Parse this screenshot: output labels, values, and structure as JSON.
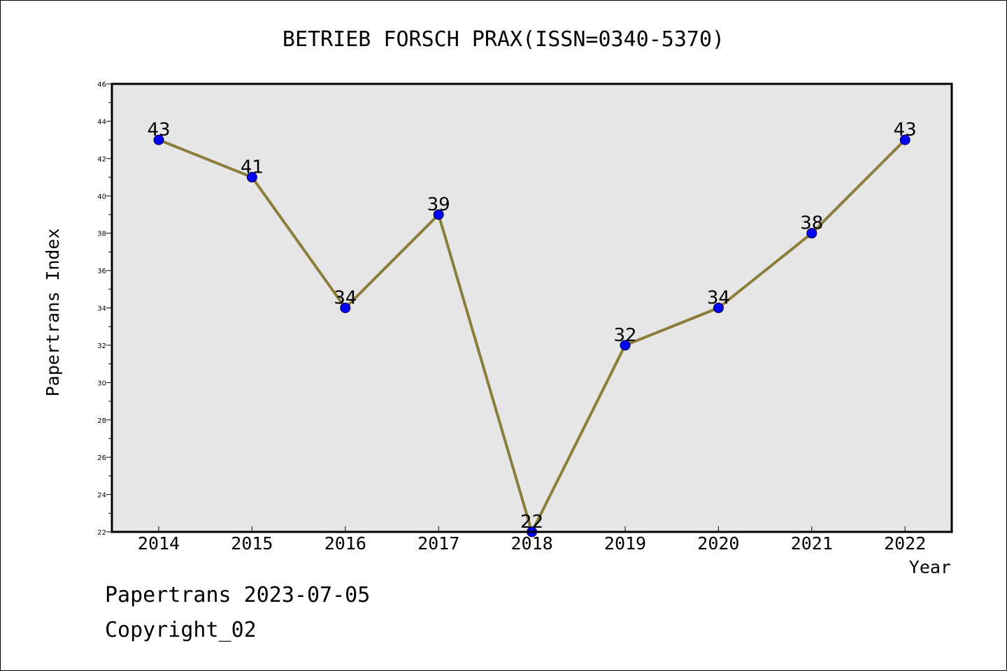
{
  "chart_data": {
    "type": "line",
    "title": "BETRIEB FORSCH PRAX(ISSN=0340-5370)",
    "xlabel": "Year",
    "ylabel": "Papertrans Index",
    "x": [
      "2014",
      "2015",
      "2016",
      "2017",
      "2018",
      "2019",
      "2020",
      "2021",
      "2022"
    ],
    "values": [
      43,
      41,
      34,
      39,
      22,
      32,
      34,
      38,
      43
    ],
    "data_labels": [
      "43",
      "41",
      "34",
      "39",
      "22",
      "32",
      "34",
      "38",
      "43"
    ],
    "ylim": [
      22,
      46
    ],
    "y_ticks": [
      "22",
      "24",
      "26",
      "28",
      "30",
      "32",
      "34",
      "36",
      "38",
      "40",
      "42",
      "44",
      "46"
    ],
    "grid": false,
    "legend": "none",
    "colors": {
      "line": "#8b7d3a",
      "marker": "#0000ff",
      "plot_background": "#e6e6e6",
      "axis": "#000000"
    }
  },
  "footer": {
    "line1": "Papertrans 2023-07-05",
    "line2": "Copyright_02"
  }
}
